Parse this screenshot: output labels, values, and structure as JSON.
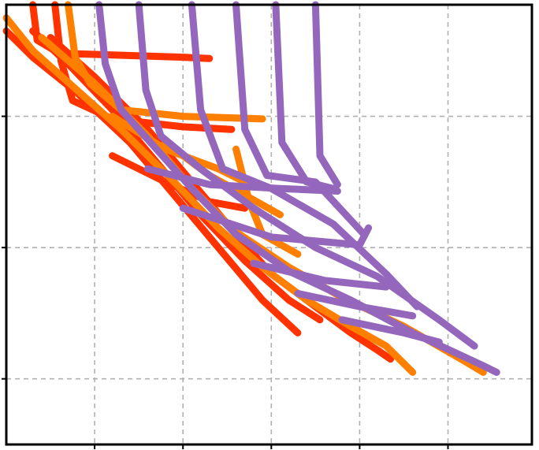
{
  "chart_data": {
    "type": "line",
    "title": "",
    "xlabel": "",
    "ylabel": "",
    "grid": true,
    "legend": "none",
    "x_gridlines": [
      1,
      2,
      3,
      4,
      5
    ],
    "y_gridlines": [
      0.5,
      1.5,
      2.5
    ],
    "xlim": [
      0,
      5.95
    ],
    "ylim": [
      0,
      3.35
    ],
    "colors": {
      "red": "#ff3300",
      "orange": "#ff8000",
      "purple": "#9467bd",
      "grid": "#b0b0b0",
      "frame": "#000000"
    },
    "series": [
      {
        "color": "red",
        "points": [
          [
            0,
            3.15
          ],
          [
            0.3,
            2.95
          ],
          [
            0.8,
            2.68
          ],
          [
            1.4,
            2.3
          ],
          [
            1.9,
            1.9
          ],
          [
            2.4,
            1.5
          ],
          [
            2.9,
            1.1
          ],
          [
            3.3,
            0.85
          ]
        ]
      },
      {
        "color": "red",
        "points": [
          [
            0.3,
            3.15
          ],
          [
            0.7,
            2.9
          ],
          [
            1.2,
            2.55
          ],
          [
            1.7,
            2.15
          ],
          [
            2.2,
            1.75
          ],
          [
            2.7,
            1.4
          ],
          [
            3.2,
            1.1
          ],
          [
            3.55,
            0.95
          ]
        ]
      },
      {
        "color": "red",
        "points": [
          [
            0.5,
            3.1
          ],
          [
            1.0,
            2.8
          ],
          [
            1.6,
            2.4
          ],
          [
            2.1,
            2.0
          ],
          [
            2.6,
            1.6
          ],
          [
            3.0,
            1.3
          ],
          [
            3.5,
            1.05
          ],
          [
            3.9,
            0.85
          ],
          [
            4.2,
            0.72
          ],
          [
            4.35,
            0.65
          ]
        ]
      },
      {
        "color": "red",
        "points": [
          [
            0.3,
            3.35
          ],
          [
            0.35,
            3.08
          ],
          [
            0.6,
            2.98
          ],
          [
            2.0,
            2.95
          ],
          [
            2.3,
            2.94
          ]
        ]
      },
      {
        "color": "red",
        "points": [
          [
            0.55,
            3.35
          ],
          [
            0.62,
            2.92
          ],
          [
            0.75,
            2.62
          ],
          [
            1.2,
            2.48
          ],
          [
            2.0,
            2.42
          ],
          [
            2.55,
            2.4
          ]
        ]
      },
      {
        "color": "red",
        "points": [
          [
            1.2,
            2.2
          ],
          [
            1.8,
            2.0
          ],
          [
            2.3,
            1.85
          ],
          [
            2.7,
            1.8
          ]
        ]
      },
      {
        "color": "orange",
        "points": [
          [
            0,
            3.25
          ],
          [
            0.3,
            3.0
          ],
          [
            0.8,
            2.7
          ],
          [
            1.3,
            2.4
          ],
          [
            1.9,
            2.0
          ],
          [
            2.4,
            1.65
          ],
          [
            2.9,
            1.35
          ],
          [
            3.4,
            1.1
          ],
          [
            3.9,
            0.9
          ],
          [
            4.3,
            0.75
          ],
          [
            4.6,
            0.55
          ]
        ]
      },
      {
        "color": "orange",
        "points": [
          [
            0.4,
            3.1
          ],
          [
            1.0,
            2.75
          ],
          [
            1.6,
            2.35
          ],
          [
            2.1,
            1.95
          ],
          [
            2.6,
            1.62
          ],
          [
            3.2,
            1.35
          ],
          [
            3.8,
            1.12
          ],
          [
            4.5,
            0.9
          ],
          [
            5.15,
            0.65
          ],
          [
            5.4,
            0.55
          ]
        ]
      },
      {
        "color": "orange",
        "points": [
          [
            0.7,
            3.35
          ],
          [
            0.78,
            2.95
          ],
          [
            0.95,
            2.75
          ],
          [
            1.3,
            2.55
          ],
          [
            2.0,
            2.5
          ],
          [
            2.9,
            2.48
          ]
        ]
      },
      {
        "color": "orange",
        "points": [
          [
            1.2,
            2.5
          ],
          [
            1.8,
            2.25
          ],
          [
            2.4,
            2.1
          ],
          [
            2.7,
            2.0
          ]
        ]
      },
      {
        "color": "orange",
        "points": [
          [
            1.8,
            2.3
          ],
          [
            2.3,
            2.05
          ],
          [
            2.7,
            1.9
          ],
          [
            3.1,
            1.75
          ]
        ]
      },
      {
        "color": "orange",
        "points": [
          [
            2.6,
            2.25
          ],
          [
            2.75,
            1.85
          ],
          [
            2.9,
            1.6
          ],
          [
            3.3,
            1.45
          ]
        ]
      },
      {
        "color": "purple",
        "points": [
          [
            1.05,
            3.35
          ],
          [
            1.12,
            2.9
          ],
          [
            1.3,
            2.55
          ],
          [
            1.7,
            2.25
          ],
          [
            2.1,
            1.95
          ],
          [
            2.6,
            1.6
          ],
          [
            3.2,
            1.32
          ],
          [
            3.9,
            1.1
          ],
          [
            4.6,
            0.85
          ],
          [
            5.4,
            0.6
          ],
          [
            5.55,
            0.55
          ]
        ]
      },
      {
        "color": "purple",
        "points": [
          [
            1.5,
            3.35
          ],
          [
            1.58,
            2.7
          ],
          [
            1.75,
            2.35
          ],
          [
            2.2,
            2.1
          ],
          [
            2.8,
            1.8
          ],
          [
            3.5,
            1.5
          ],
          [
            4.2,
            1.28
          ],
          [
            4.9,
            0.95
          ],
          [
            5.3,
            0.75
          ]
        ]
      },
      {
        "color": "purple",
        "points": [
          [
            2.1,
            3.35
          ],
          [
            2.2,
            2.55
          ],
          [
            2.45,
            2.1
          ],
          [
            3.0,
            1.95
          ],
          [
            3.7,
            1.68
          ],
          [
            4.3,
            1.3
          ],
          [
            4.65,
            1.05
          ]
        ]
      },
      {
        "color": "purple",
        "points": [
          [
            2.6,
            3.35
          ],
          [
            2.7,
            2.4
          ],
          [
            2.95,
            2.05
          ],
          [
            3.5,
            2.0
          ],
          [
            4.05,
            1.6
          ]
        ]
      },
      {
        "color": "purple",
        "points": [
          [
            3.05,
            3.35
          ],
          [
            3.12,
            2.3
          ],
          [
            3.4,
            2.0
          ],
          [
            3.7,
            1.95
          ]
        ]
      },
      {
        "color": "purple",
        "points": [
          [
            3.5,
            3.35
          ],
          [
            3.55,
            2.2
          ],
          [
            3.75,
            1.98
          ]
        ]
      },
      {
        "color": "purple",
        "points": [
          [
            1.6,
            2.1
          ],
          [
            2.3,
            1.98
          ],
          [
            3.1,
            1.95
          ],
          [
            3.75,
            1.93
          ]
        ]
      },
      {
        "color": "purple",
        "points": [
          [
            2.0,
            1.8
          ],
          [
            3.0,
            1.58
          ],
          [
            4.0,
            1.52
          ],
          [
            4.1,
            1.65
          ]
        ]
      },
      {
        "color": "purple",
        "points": [
          [
            2.8,
            1.38
          ],
          [
            3.6,
            1.25
          ],
          [
            4.3,
            1.2
          ]
        ]
      },
      {
        "color": "purple",
        "points": [
          [
            3.3,
            1.15
          ],
          [
            4.0,
            1.05
          ],
          [
            4.6,
            0.98
          ]
        ]
      },
      {
        "color": "purple",
        "points": [
          [
            3.8,
            0.95
          ],
          [
            4.5,
            0.85
          ],
          [
            4.9,
            0.78
          ]
        ]
      }
    ]
  }
}
